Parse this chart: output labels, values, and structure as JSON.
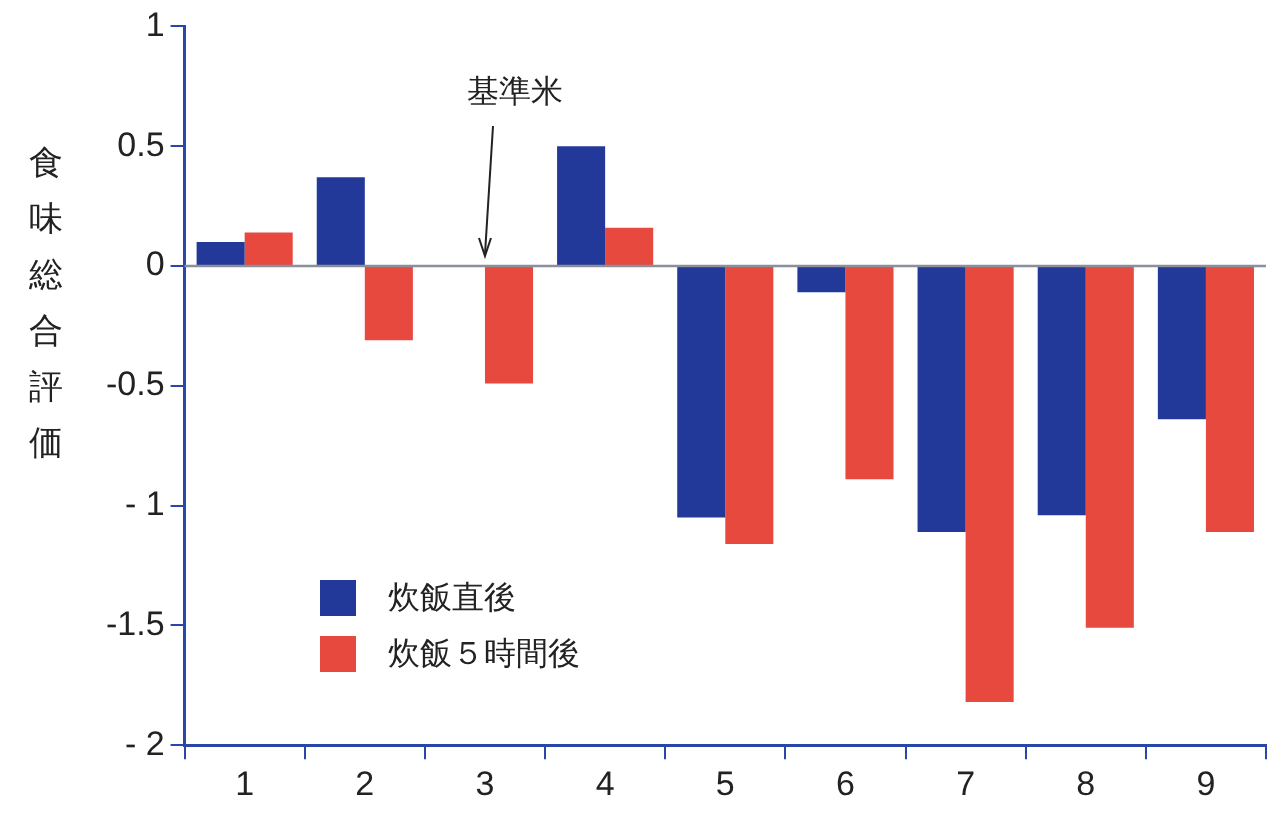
{
  "chart_data": {
    "type": "bar",
    "ylabel": "食味総合評価",
    "categories": [
      "1",
      "2",
      "3",
      "4",
      "5",
      "6",
      "7",
      "8",
      "9"
    ],
    "series": [
      {
        "name": "炊飯直後",
        "color": "#23399a",
        "values": [
          0.1,
          0.37,
          0,
          0.5,
          -1.05,
          -0.11,
          -1.11,
          -1.04,
          -0.64
        ]
      },
      {
        "name": "炊飯５時間後",
        "color": "#e8493f",
        "values": [
          0.14,
          -0.31,
          -0.49,
          0.16,
          -1.16,
          -0.89,
          -1.82,
          -1.51,
          -1.11
        ]
      }
    ],
    "ylim": [
      -2,
      1
    ],
    "yticks": [
      {
        "value": -2,
        "label": "- 2"
      },
      -1.5,
      {
        "value": -1,
        "label": "- 1"
      },
      -0.5,
      0,
      0.5,
      1
    ],
    "ref_lines": [
      {
        "axis": "y",
        "value": 0,
        "color": "#8a8f9a"
      }
    ],
    "annotations": [
      {
        "text": "基準米",
        "x": "3",
        "y": 0
      }
    ],
    "grid": false,
    "legend": "bottom left"
  }
}
